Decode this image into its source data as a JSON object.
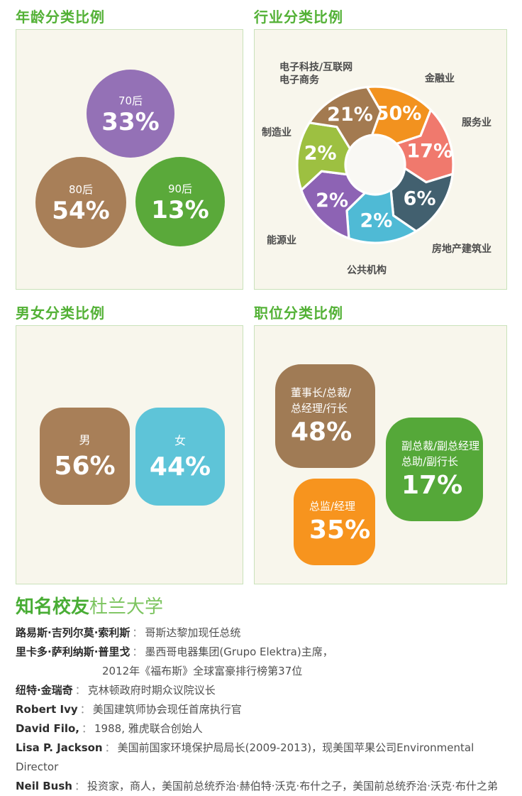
{
  "page": {
    "background": "#ffffff",
    "panel_bg": "#f8f6ec",
    "panel_border": "#c9e2ba",
    "title_color": "#53b136",
    "label_color": "#4c4c4c"
  },
  "panels": {
    "age": {
      "title": "年龄分类比例",
      "bubbles": [
        {
          "label": "70后",
          "pct": "33%",
          "value": 33,
          "color": "#9471b6"
        },
        {
          "label": "80后",
          "pct": "54%",
          "value": 54,
          "color": "#a87f58"
        },
        {
          "label": "90后",
          "pct": "13%",
          "value": 13,
          "color": "#5aa93a"
        }
      ]
    },
    "industry": {
      "title": "行业分类比例",
      "segments": [
        {
          "id": "finance",
          "label": "金融业",
          "pct": "50%",
          "value": 50,
          "color": "#f2921f"
        },
        {
          "id": "services",
          "label": "服务业",
          "pct": "17%",
          "value": 17,
          "color": "#f0796d"
        },
        {
          "id": "realestate",
          "label": "房地产建筑业",
          "pct": "6%",
          "value": 6,
          "color": "#42606f"
        },
        {
          "id": "public",
          "label": "公共机构",
          "pct": "2%",
          "value": 2,
          "color": "#4fbad5"
        },
        {
          "id": "energy",
          "label": "能源业",
          "pct": "2%",
          "value": 2,
          "color": "#8d63b4"
        },
        {
          "id": "manufacturing",
          "label": "制造业",
          "pct": "2%",
          "value": 2,
          "color": "#9dc041"
        },
        {
          "id": "electronics",
          "label": "电子科技/互联网",
          "label2": "电子商务",
          "pct": "21%",
          "value": 21,
          "color": "#a37a50"
        }
      ]
    },
    "gender": {
      "title": "男女分类比例",
      "squares": [
        {
          "label": "男",
          "pct": "56%",
          "value": 56,
          "color": "#a87f58"
        },
        {
          "label": "女",
          "pct": "44%",
          "value": 44,
          "color": "#5ec4d8"
        }
      ]
    },
    "position": {
      "title": "职位分类比例",
      "squares": [
        {
          "lines": [
            "董事长/总裁/",
            "总经理/行长"
          ],
          "pct": "48%",
          "value": 48,
          "color": "#a07b55"
        },
        {
          "lines": [
            "副总裁/副总经理",
            "总助/副行长"
          ],
          "pct": "17%",
          "value": 17,
          "color": "#55a839"
        },
        {
          "lines": [
            "总监/经理"
          ],
          "pct": "35%",
          "value": 35,
          "color": "#f7941e"
        }
      ]
    }
  },
  "alumni": {
    "title_bold": "知名校友",
    "title_light": "杜兰大学",
    "separator": "：",
    "entries": [
      {
        "name": "路易斯·吉列尔莫·索利斯",
        "desc": "哥斯达黎加现任总统"
      },
      {
        "name": "里卡多·萨利纳斯·普里戈",
        "desc": "墨西哥电器集团(Grupo Elektra)主席，",
        "cont": "2012年《福布斯》全球富豪排行榜第37位"
      },
      {
        "name": "纽特·金瑞奇",
        "desc": "克林顿政府时期众议院议长"
      },
      {
        "name": "Robert Ivy",
        "desc": "美国建筑师协会现任首席执行官"
      },
      {
        "name": "David Filo,",
        "desc": "1988, 雅虎联合创始人"
      },
      {
        "name": "Lisa P. Jackson",
        "desc": "美国前国家环境保护局局长(2009-2013)，现美国苹果公司Environmental Director"
      },
      {
        "name": "Neil Bush",
        "desc": "投资家，商人，美国前总统乔治·赫伯特·沃克·布什之子，美国前总统乔治·沃克·布什之弟"
      }
    ]
  },
  "chart_data": [
    {
      "type": "bubble",
      "title": "年龄分类比例",
      "categories": [
        "70后",
        "80后",
        "90后"
      ],
      "values": [
        33,
        54,
        13
      ]
    },
    {
      "type": "pie",
      "title": "行业分类比例",
      "style": "pinwheel-donut",
      "equal_angles": true,
      "categories": [
        "金融业",
        "服务业",
        "房地产建筑业",
        "公共机构",
        "能源业",
        "制造业",
        "电子科技/互联网电子商务"
      ],
      "values": [
        50,
        17,
        6,
        2,
        2,
        2,
        21
      ]
    },
    {
      "type": "bar",
      "title": "男女分类比例",
      "categories": [
        "男",
        "女"
      ],
      "values": [
        56,
        44
      ]
    },
    {
      "type": "bar",
      "title": "职位分类比例",
      "categories": [
        "董事长/总裁/总经理/行长",
        "副总裁/副总经理/总助/副行长",
        "总监/经理"
      ],
      "values": [
        48,
        17,
        35
      ]
    }
  ]
}
